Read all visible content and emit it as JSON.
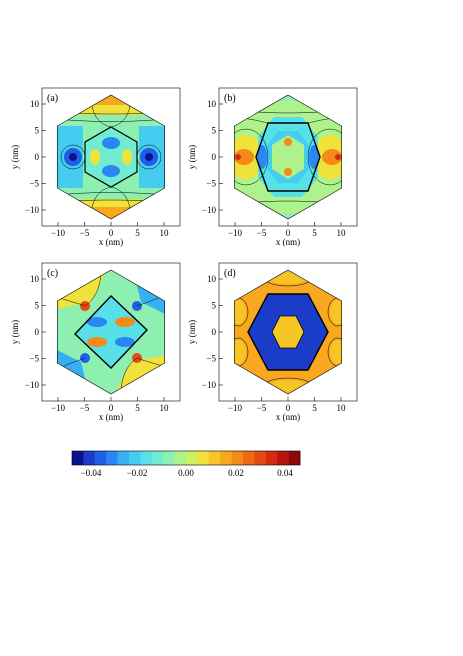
{
  "figure": {
    "panels": [
      {
        "label": "(a)",
        "xlabel": "x (nm)",
        "ylabel": "y (nm)"
      },
      {
        "label": "(b)",
        "xlabel": "x (nm)",
        "ylabel": "y (nm)"
      },
      {
        "label": "(c)",
        "xlabel": "x (nm)",
        "ylabel": "y (nm)"
      },
      {
        "label": "(d)",
        "xlabel": "x (nm)",
        "ylabel": "y (nm)"
      }
    ],
    "x_ticks": [
      "-10",
      "-5",
      "0",
      "5",
      "10"
    ],
    "y_ticks": [
      "10",
      "5",
      "0",
      "-5",
      "-10"
    ],
    "colorbar": {
      "colors": [
        "#0a128c",
        "#1a3cc8",
        "#1f5ee6",
        "#2a86f2",
        "#36b0f2",
        "#44cdf0",
        "#58e0e8",
        "#72ecd0",
        "#8ef0b0",
        "#aef28c",
        "#cdf067",
        "#f0e23a",
        "#f7c626",
        "#f7a81e",
        "#f48a18",
        "#ee6a14",
        "#e44a12",
        "#d42a10",
        "#b81410",
        "#8c0a0a"
      ],
      "tick_labels": [
        "-0.04",
        "-0.02",
        "0.00",
        "0.02",
        "0.04"
      ]
    }
  },
  "chart_data": [
    {
      "type": "heatmap",
      "title": "(a)",
      "xlabel": "x (nm)",
      "ylabel": "y (nm)",
      "xlim": [
        -13,
        13
      ],
      "ylim": [
        -13,
        13
      ],
      "colorbar_range": [
        -0.045,
        0.045
      ]
    },
    {
      "type": "heatmap",
      "title": "(b)",
      "xlabel": "x (nm)",
      "ylabel": "y (nm)",
      "xlim": [
        -13,
        13
      ],
      "ylim": [
        -13,
        13
      ],
      "colorbar_range": [
        -0.045,
        0.045
      ]
    },
    {
      "type": "heatmap",
      "title": "(c)",
      "xlabel": "x (nm)",
      "ylabel": "y (nm)",
      "xlim": [
        -13,
        13
      ],
      "ylim": [
        -13,
        13
      ],
      "colorbar_range": [
        -0.045,
        0.045
      ]
    },
    {
      "type": "heatmap",
      "title": "(d)",
      "xlabel": "x (nm)",
      "ylabel": "y (nm)",
      "xlim": [
        -13,
        13
      ],
      "ylim": [
        -13,
        13
      ],
      "colorbar_range": [
        -0.045,
        0.045
      ]
    }
  ]
}
